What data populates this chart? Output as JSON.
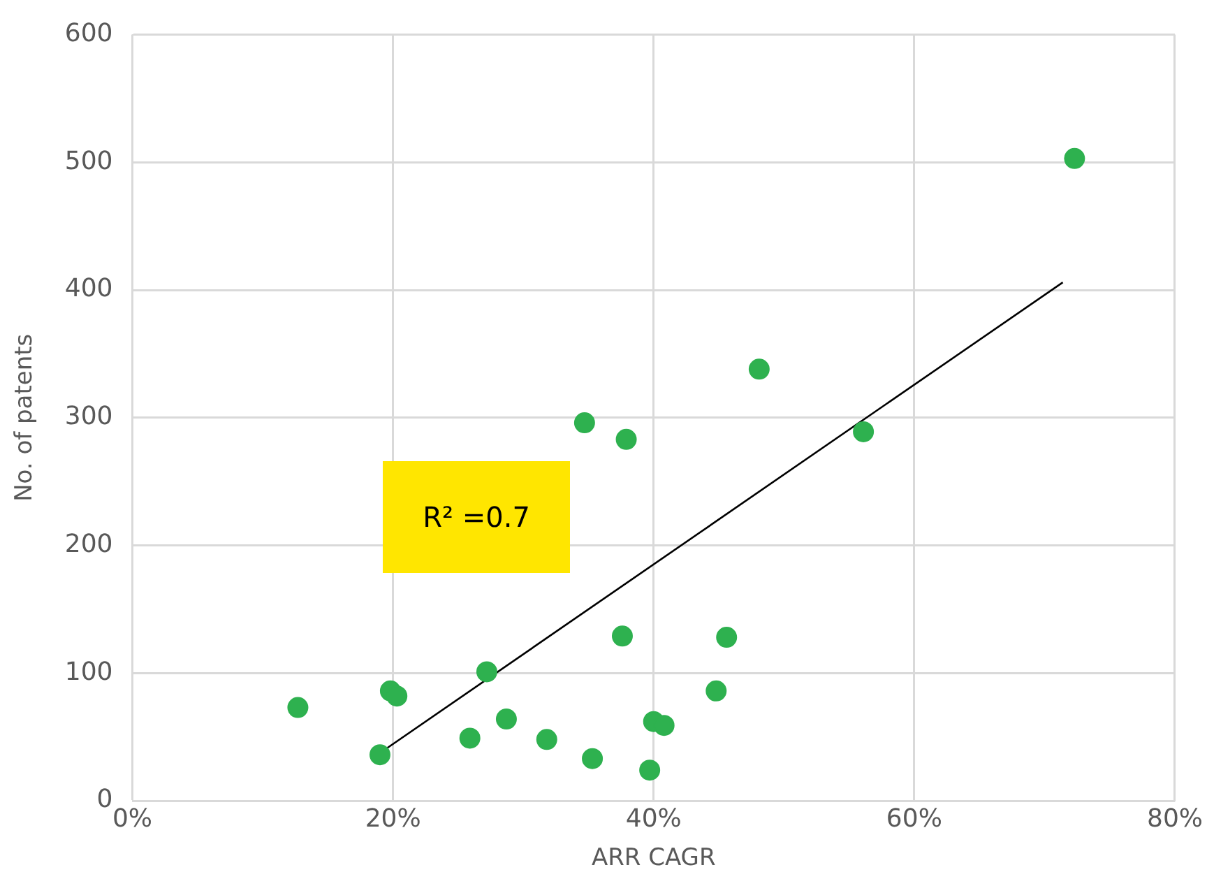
{
  "chart_data": {
    "type": "scatter",
    "xlabel": "ARR CAGR",
    "ylabel": "No. of patents",
    "xlim": [
      0,
      80
    ],
    "xticks": [
      {
        "value": 0,
        "label": "0%"
      },
      {
        "value": 20,
        "label": "20%"
      },
      {
        "value": 40,
        "label": "40%"
      },
      {
        "value": 60,
        "label": "60%"
      },
      {
        "value": 80,
        "label": "80%"
      }
    ],
    "ylim": [
      0,
      600
    ],
    "yticks": [
      0,
      100,
      200,
      300,
      400,
      500,
      600
    ],
    "grid": true,
    "legend": false,
    "marker": "circle",
    "series": [
      {
        "color": "#2eb14f",
        "x": [
          12.7,
          19.0,
          19.8,
          20.3,
          25.9,
          27.2,
          28.7,
          31.8,
          34.7,
          35.3,
          37.6,
          37.9,
          39.7,
          40.0,
          40.8,
          44.8,
          45.6,
          48.1,
          56.1,
          72.3
        ],
        "values": [
          73,
          36,
          86,
          82,
          49,
          101,
          64,
          48,
          296,
          33,
          129,
          283,
          24,
          62,
          59,
          86,
          128,
          338,
          289,
          503
        ]
      },
      {
        "type": "line",
        "color": "#000000",
        "x": [
          18.8,
          71.4
        ],
        "values": [
          36,
          406
        ],
        "marker": "none"
      }
    ],
    "annotations": [
      "R² =0.7"
    ]
  }
}
